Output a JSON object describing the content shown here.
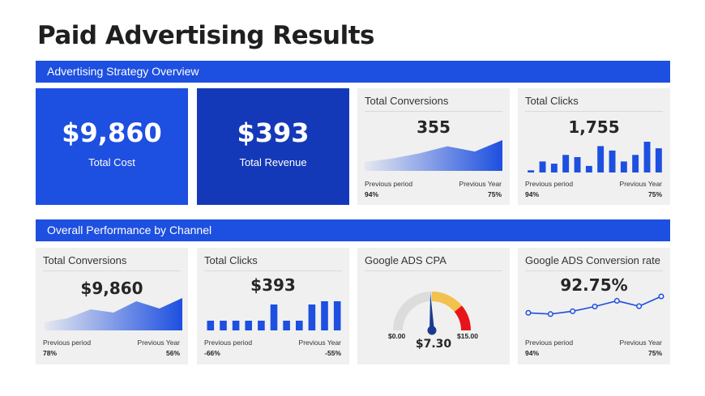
{
  "title": "Paid Advertising Results",
  "section1": {
    "label": "Advertising Strategy Overview"
  },
  "section2": {
    "label": "Overall Performance by Channel"
  },
  "cards": {
    "total_cost": {
      "value": "$9,860",
      "label": "Total Cost"
    },
    "total_revenue": {
      "value": "$393",
      "label": "Total Revenue"
    },
    "conversions1": {
      "title": "Total Conversions",
      "value": "355",
      "prev_label": "Previous period",
      "prev_value": "94%",
      "year_label": "Previous Year",
      "year_value": "75%"
    },
    "clicks1": {
      "title": "Total Clicks",
      "value": "1,755",
      "prev_label": "Previous period",
      "prev_value": "94%",
      "year_label": "Previous Year",
      "year_value": "75%"
    },
    "conversions2": {
      "title": "Total Conversions",
      "value": "$9,860",
      "prev_label": "Previous period",
      "prev_value": "78%",
      "year_label": "Previous Year",
      "year_value": "56%"
    },
    "clicks2": {
      "title": "Total Clicks",
      "value": "$393",
      "prev_label": "Previous period",
      "prev_value": "-66%",
      "year_label": "Previous Year",
      "year_value": "-55%"
    },
    "cpa": {
      "title": "Google ADS CPA",
      "value": "$7.30",
      "min": "$0.00",
      "max": "$15.00"
    },
    "conv_rate": {
      "title": "Google ADS Conversion rate",
      "value": "92.75%",
      "prev_label": "Previous period",
      "prev_value": "94%",
      "year_label": "Previous Year",
      "year_value": "75%"
    }
  },
  "colors": {
    "accent": "#1d4fe0",
    "dark_accent": "#1439b8",
    "card_bg": "#f0f0f0",
    "gauge_yellow": "#f2c14e",
    "gauge_red": "#e8141b"
  },
  "chart_data": [
    {
      "type": "area",
      "name": "conversions1-sparkline",
      "values": [
        1,
        1.4,
        2,
        2.8,
        2.2,
        3.5
      ]
    },
    {
      "type": "bar",
      "name": "clicks1-sparkline",
      "values": [
        1,
        5,
        4,
        8,
        7,
        3,
        12,
        10,
        5,
        8,
        14,
        11
      ]
    },
    {
      "type": "area",
      "name": "conversions2-sparkline",
      "values": [
        1,
        1.5,
        2.6,
        2.2,
        3.6,
        2.7,
        4
      ]
    },
    {
      "type": "bar",
      "name": "clicks2-sparkline",
      "values": [
        3,
        3,
        3,
        3,
        3,
        8,
        3,
        3,
        8,
        9,
        9
      ]
    },
    {
      "type": "gauge",
      "name": "cpa-gauge",
      "value": 7.3,
      "min": 0,
      "max": 15
    },
    {
      "type": "line",
      "name": "conv-rate-sparkline",
      "values": [
        3,
        2.6,
        3.5,
        5,
        6.8,
        5.1,
        8.2
      ]
    }
  ]
}
